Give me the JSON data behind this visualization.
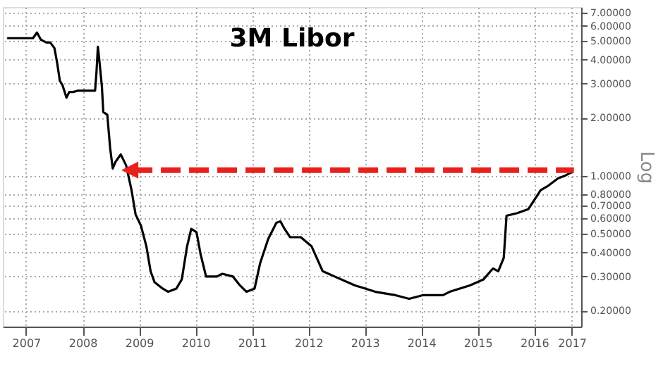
{
  "chart_data": {
    "type": "line",
    "title": "3M Libor",
    "ylabel": "Log",
    "log": "y",
    "grid": true,
    "legend": false,
    "xlim": [
      "2007-02-01",
      "2017-05-01"
    ],
    "xticks": [
      {
        "value": "2007-07-01",
        "label": "2007"
      },
      {
        "value": "2008-07-01",
        "label": "2008"
      },
      {
        "value": "2009-07-01",
        "label": "2009"
      },
      {
        "value": "2010-07-01",
        "label": "2010"
      },
      {
        "value": "2011-07-01",
        "label": "2011"
      },
      {
        "value": "2012-07-01",
        "label": "2012"
      },
      {
        "value": "2013-07-01",
        "label": "2013"
      },
      {
        "value": "2014-07-01",
        "label": "2014"
      },
      {
        "value": "2015-07-01",
        "label": "2015"
      },
      {
        "value": "2016-07-01",
        "label": "2016"
      },
      {
        "value": "2017-03-01",
        "label": "2017"
      }
    ],
    "ylim": [
      0.165,
      7.5
    ],
    "yticks": [
      {
        "value": 0.2,
        "label": "0.20000"
      },
      {
        "value": 0.3,
        "label": "0.30000"
      },
      {
        "value": 0.4,
        "label": "0.40000"
      },
      {
        "value": 0.5,
        "label": "0.50000"
      },
      {
        "value": 0.6,
        "label": "0.60000"
      },
      {
        "value": 0.7,
        "label": "0.70000"
      },
      {
        "value": 0.8,
        "label": "0.80000"
      },
      {
        "value": 1,
        "label": "1.00000"
      },
      {
        "value": 2,
        "label": "2.00000"
      },
      {
        "value": 3,
        "label": "3.00000"
      },
      {
        "value": 4,
        "label": "4.00000"
      },
      {
        "value": 5,
        "label": "5.00000"
      },
      {
        "value": 6,
        "label": "6.00000"
      },
      {
        "value": 7,
        "label": "7.00000"
      }
    ],
    "series": [
      {
        "type": "line",
        "color": "#000000",
        "line_style": "solid",
        "x": [
          "2007-03-01",
          "2007-08-15",
          "2007-09-10",
          "2007-10-05",
          "2007-11-10",
          "2007-12-05",
          "2008-01-01",
          "2008-01-18",
          "2008-02-05",
          "2008-02-22",
          "2008-03-19",
          "2008-04-06",
          "2008-05-02",
          "2008-05-29",
          "2008-07-12",
          "2008-09-20",
          "2008-09-29",
          "2008-10-08",
          "2008-10-16",
          "2008-11-03",
          "2008-11-12",
          "2008-12-08",
          "2008-12-26",
          "2009-01-12",
          "2009-01-30",
          "2009-03-05",
          "2009-04-09",
          "2009-05-14",
          "2009-06-09",
          "2009-07-14",
          "2009-08-18",
          "2009-09-14",
          "2009-10-10",
          "2009-12-01",
          "2010-01-06",
          "2010-02-28",
          "2010-04-04",
          "2010-05-08",
          "2010-06-04",
          "2010-07-08",
          "2010-08-04",
          "2010-09-08",
          "2010-11-17",
          "2010-12-22",
          "2011-03-01",
          "2011-04-15",
          "2011-05-28",
          "2011-07-19",
          "2011-08-23",
          "2011-10-15",
          "2011-12-07",
          "2012-01-02",
          "2012-01-29",
          "2012-03-04",
          "2012-05-13",
          "2012-07-22",
          "2012-10-01",
          "2012-12-18",
          "2013-04-28",
          "2013-09-07",
          "2014-01-16",
          "2014-04-14",
          "2014-07-10",
          "2014-11-18",
          "2015-01-01",
          "2015-05-12",
          "2015-08-08",
          "2015-10-08",
          "2015-11-12",
          "2015-12-17",
          "2016-01-04",
          "2016-03-14",
          "2016-05-23",
          "2016-06-28",
          "2016-08-11",
          "2016-10-02",
          "2016-12-03",
          "2017-01-16",
          "2017-03-08"
        ],
        "values": [
          5.17,
          5.17,
          5.53,
          5.08,
          4.91,
          4.91,
          4.59,
          3.87,
          3.11,
          2.95,
          2.54,
          2.72,
          2.72,
          2.76,
          2.76,
          2.76,
          3.44,
          4.67,
          4.08,
          2.9,
          2.14,
          2.07,
          1.4,
          1.09,
          1.18,
          1.29,
          1.13,
          0.84,
          0.63,
          0.55,
          0.43,
          0.32,
          0.28,
          0.26,
          0.25,
          0.26,
          0.29,
          0.43,
          0.53,
          0.51,
          0.39,
          0.3,
          0.3,
          0.31,
          0.3,
          0.27,
          0.25,
          0.26,
          0.35,
          0.47,
          0.57,
          0.58,
          0.53,
          0.48,
          0.48,
          0.43,
          0.32,
          0.3,
          0.27,
          0.25,
          0.24,
          0.23,
          0.24,
          0.24,
          0.25,
          0.27,
          0.29,
          0.33,
          0.32,
          0.375,
          0.62,
          0.64,
          0.67,
          0.74,
          0.84,
          0.89,
          0.97,
          1.0,
          1.05
        ]
      },
      {
        "type": "line",
        "color": "#e8211c",
        "line_style": "dashed",
        "x": [
          "2009-05-21",
          "2017-03-15"
        ],
        "values": [
          1.07,
          1.07
        ]
      }
    ]
  }
}
